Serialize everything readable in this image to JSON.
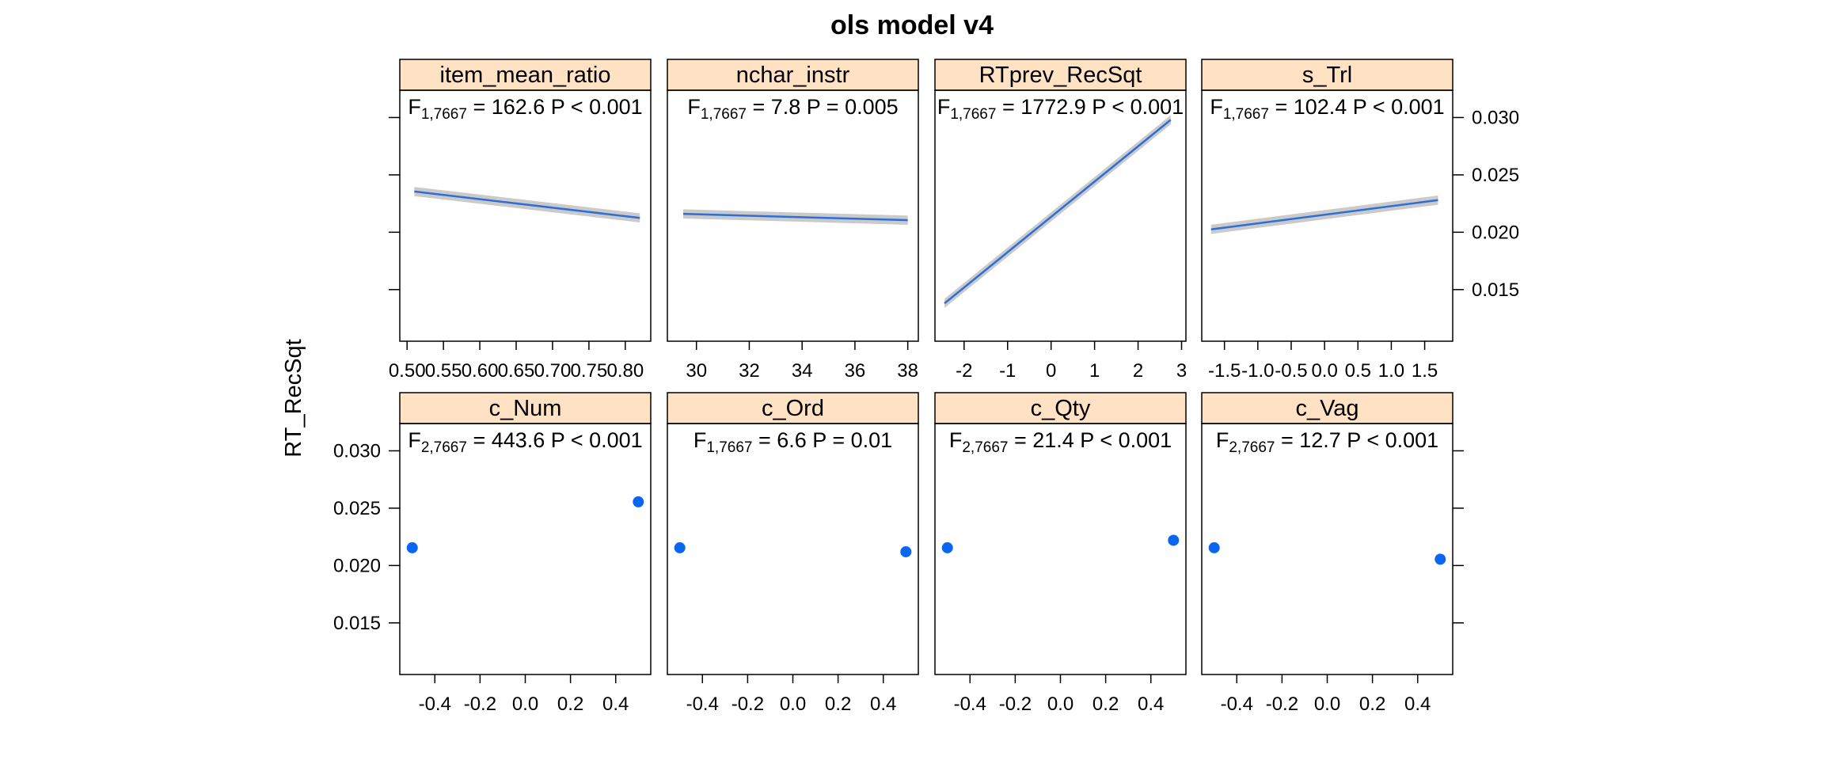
{
  "chart_data": {
    "type": "line",
    "title": "ols model v4",
    "ylabel": "RT_RecSqt",
    "ylim": [
      0.0105,
      0.035
    ],
    "yticks": [
      0.015,
      0.02,
      0.025,
      0.03
    ],
    "ytick_labels": [
      "0.015",
      "0.020",
      "0.025",
      "0.030"
    ],
    "strip_color": "#ffe1c4",
    "line_color": "#2e6ed6",
    "band_color": "#c4c4c4",
    "point_color": "#0a66f0",
    "panels": [
      {
        "name": "item_mean_ratio",
        "type": "line",
        "xlim": [
          0.49,
          0.835
        ],
        "xticks": [
          0.5,
          0.55,
          0.6,
          0.65,
          0.7,
          0.75,
          0.8
        ],
        "xtick_labels": [
          "0.50",
          "0.55",
          "0.60",
          "0.65",
          "0.70",
          "0.75",
          "0.80"
        ],
        "x": [
          0.51,
          0.82
        ],
        "y": [
          0.02355,
          0.02125
        ],
        "band": 0.0004,
        "stat": {
          "f": "F",
          "sub": "1,7667",
          "text": " = 162.6  P < 0.001"
        }
      },
      {
        "name": "nchar_instr",
        "type": "line",
        "xlim": [
          28.9,
          38.4
        ],
        "xticks": [
          30,
          32,
          34,
          36,
          38
        ],
        "xtick_labels": [
          "30",
          "32",
          "34",
          "36",
          "38"
        ],
        "x": [
          29.5,
          38
        ],
        "y": [
          0.0216,
          0.02105
        ],
        "band": 0.0004,
        "stat": {
          "f": "F",
          "sub": "1,7667",
          "text": " = 7.8  P = 0.005"
        }
      },
      {
        "name": "RTprev_RecSqt",
        "type": "line",
        "xlim": [
          -2.67,
          3.1
        ],
        "xticks": [
          -2,
          -1,
          0,
          1,
          2,
          3
        ],
        "xtick_labels": [
          "-2",
          "-1",
          "0",
          "1",
          "2",
          "3"
        ],
        "x": [
          -2.45,
          2.75
        ],
        "y": [
          0.0138,
          0.0298
        ],
        "band": 0.0004,
        "stat": {
          "f": "F",
          "sub": "1,7667",
          "text": " = 1772.9  P < 0.001"
        }
      },
      {
        "name": "s_Trl",
        "type": "line",
        "xlim": [
          -1.84,
          1.92
        ],
        "xticks": [
          -1.5,
          -1.0,
          -0.5,
          0.0,
          0.5,
          1.0,
          1.5
        ],
        "xtick_labels": [
          "-1.5",
          "-1.0",
          "-0.5",
          "0.0",
          "0.5",
          "1.0",
          "1.5"
        ],
        "x": [
          -1.7,
          1.7
        ],
        "y": [
          0.02025,
          0.0228
        ],
        "band": 0.0004,
        "stat": {
          "f": "F",
          "sub": "1,7667",
          "text": " = 102.4  P < 0.001"
        }
      },
      {
        "name": "c_Num",
        "type": "scatter",
        "xlim": [
          -0.555,
          0.555
        ],
        "xticks": [
          -0.4,
          -0.2,
          0.0,
          0.2,
          0.4
        ],
        "xtick_labels": [
          "-0.4",
          "-0.2",
          "0.0",
          "0.2",
          "0.4"
        ],
        "x": [
          -0.5,
          0.5
        ],
        "y": [
          0.02155,
          0.02555
        ],
        "stat": {
          "f": "F",
          "sub": "2,7667",
          "text": " = 443.6  P < 0.001"
        }
      },
      {
        "name": "c_Ord",
        "type": "scatter",
        "xlim": [
          -0.555,
          0.555
        ],
        "xticks": [
          -0.4,
          -0.2,
          0.0,
          0.2,
          0.4
        ],
        "xtick_labels": [
          "-0.4",
          "-0.2",
          "0.0",
          "0.2",
          "0.4"
        ],
        "x": [
          -0.5,
          0.5
        ],
        "y": [
          0.02155,
          0.0212
        ],
        "stat": {
          "f": "F",
          "sub": "1,7667",
          "text": " = 6.6  P = 0.01"
        }
      },
      {
        "name": "c_Qty",
        "type": "scatter",
        "xlim": [
          -0.555,
          0.555
        ],
        "xticks": [
          -0.4,
          -0.2,
          0.0,
          0.2,
          0.4
        ],
        "xtick_labels": [
          "-0.4",
          "-0.2",
          "0.0",
          "0.2",
          "0.4"
        ],
        "x": [
          -0.5,
          0.5
        ],
        "y": [
          0.02155,
          0.0222
        ],
        "stat": {
          "f": "F",
          "sub": "2,7667",
          "text": " = 21.4  P < 0.001"
        }
      },
      {
        "name": "c_Vag",
        "type": "scatter",
        "xlim": [
          -0.555,
          0.555
        ],
        "xticks": [
          -0.4,
          -0.2,
          0.0,
          0.2,
          0.4
        ],
        "xtick_labels": [
          "-0.4",
          "-0.2",
          "0.0",
          "0.2",
          "0.4"
        ],
        "x": [
          -0.5,
          0.5
        ],
        "y": [
          0.02155,
          0.02055
        ],
        "stat": {
          "f": "F",
          "sub": "2,7667",
          "text": " = 12.7  P < 0.001"
        }
      }
    ]
  }
}
